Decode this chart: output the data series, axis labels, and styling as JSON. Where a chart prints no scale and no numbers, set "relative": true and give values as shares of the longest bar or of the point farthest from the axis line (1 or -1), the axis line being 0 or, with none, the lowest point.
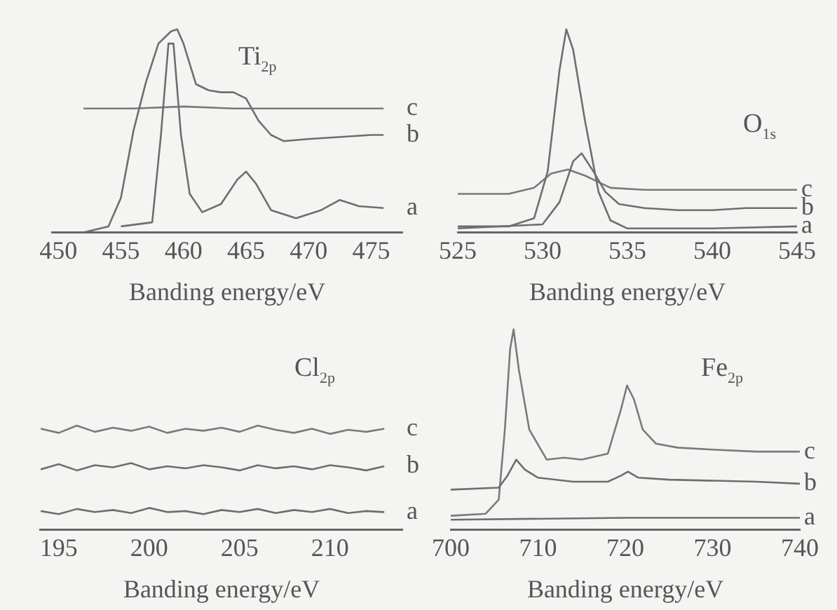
{
  "chart_data": [
    {
      "type": "line",
      "title": "Ti$_{2p}$",
      "xlabel": "Banding energy/eV",
      "relative": true,
      "xlim": [
        449.5,
        477.5
      ],
      "xticks": [
        450,
        455,
        460,
        465,
        470,
        475
      ],
      "grid": false,
      "legend": false,
      "marker": "none",
      "series": [
        {
          "name": "a",
          "color": "#6e6e6e",
          "x": [
            455,
            457.5,
            458.2,
            458.8,
            459.2,
            459.8,
            460.5,
            461.5,
            463,
            464.3,
            465,
            465.8,
            467,
            469,
            471,
            472.5,
            474,
            476
          ],
          "values": [
            0.03,
            0.05,
            0.48,
            0.93,
            0.93,
            0.48,
            0.19,
            0.1,
            0.14,
            0.26,
            0.3,
            0.24,
            0.11,
            0.07,
            0.11,
            0.16,
            0.13,
            0.12
          ]
        },
        {
          "name": "b",
          "color": "#6e6e6e",
          "x": [
            452,
            454,
            455,
            456,
            457,
            458,
            459,
            459.5,
            460,
            461,
            462,
            463,
            464,
            465,
            466,
            467,
            468,
            470,
            475,
            476
          ],
          "values": [
            0,
            0.03,
            0.17,
            0.5,
            0.74,
            0.93,
            0.99,
            1,
            0.93,
            0.73,
            0.7,
            0.69,
            0.69,
            0.66,
            0.55,
            0.48,
            0.45,
            0.46,
            0.48,
            0.48
          ]
        },
        {
          "name": "c",
          "color": "#7a7a7a",
          "x": [
            452,
            456,
            460,
            464,
            468,
            472,
            476
          ],
          "values": [
            0.61,
            0.61,
            0.62,
            0.61,
            0.61,
            0.61,
            0.61
          ]
        }
      ]
    },
    {
      "type": "line",
      "title": "O$_{1s}$",
      "xlabel": "Banding energy/eV",
      "relative": true,
      "xlim": [
        525,
        545
      ],
      "xticks": [
        525,
        530,
        535,
        540,
        545
      ],
      "grid": false,
      "legend": false,
      "marker": "none",
      "series": [
        {
          "name": "a",
          "color": "#6e6e6e",
          "x": [
            525,
            528,
            529.5,
            530.3,
            531,
            531.4,
            531.8,
            532.5,
            533.3,
            534,
            535,
            540,
            545
          ],
          "values": [
            0.03,
            0.03,
            0.07,
            0.3,
            0.8,
            1,
            0.9,
            0.55,
            0.2,
            0.06,
            0.02,
            0.02,
            0.03
          ]
        },
        {
          "name": "b",
          "color": "#6e6e6e",
          "x": [
            525,
            530,
            531,
            531.8,
            532.3,
            533,
            533.7,
            534.5,
            536,
            538,
            540,
            542,
            545
          ],
          "values": [
            0.02,
            0.04,
            0.15,
            0.35,
            0.39,
            0.3,
            0.2,
            0.14,
            0.12,
            0.11,
            0.11,
            0.12,
            0.12
          ]
        },
        {
          "name": "c",
          "color": "#7a7a7a",
          "x": [
            525,
            528,
            529.5,
            530.5,
            531.5,
            532.5,
            534,
            536,
            545
          ],
          "values": [
            0.19,
            0.19,
            0.22,
            0.29,
            0.31,
            0.28,
            0.22,
            0.21,
            0.21
          ]
        }
      ]
    },
    {
      "type": "line",
      "title": "Cl$_{2p}$",
      "xlabel": "Banding energy/eV",
      "relative": true,
      "xlim": [
        194,
        214
      ],
      "xticks": [
        195,
        200,
        205,
        210
      ],
      "grid": false,
      "legend": false,
      "marker": "none",
      "series": [
        {
          "name": "a",
          "color": "#6e6e6e",
          "x": [
            194,
            195,
            196,
            197,
            198,
            199,
            200,
            201,
            202,
            203,
            204,
            205,
            206,
            207,
            208,
            209,
            210,
            211,
            212,
            213
          ],
          "values": [
            0.18,
            0.15,
            0.2,
            0.17,
            0.19,
            0.16,
            0.21,
            0.17,
            0.18,
            0.15,
            0.19,
            0.17,
            0.2,
            0.16,
            0.19,
            0.17,
            0.2,
            0.16,
            0.18,
            0.17
          ]
        },
        {
          "name": "b",
          "color": "#6e6e6e",
          "x": [
            194,
            195,
            196,
            197,
            198,
            199,
            200,
            201,
            202,
            203,
            204,
            205,
            206,
            207,
            208,
            209,
            210,
            211,
            212,
            213
          ],
          "values": [
            0.58,
            0.63,
            0.57,
            0.62,
            0.6,
            0.64,
            0.58,
            0.61,
            0.59,
            0.62,
            0.6,
            0.57,
            0.62,
            0.59,
            0.61,
            0.58,
            0.62,
            0.6,
            0.57,
            0.61
          ]
        },
        {
          "name": "c",
          "color": "#7a7a7a",
          "x": [
            194,
            195,
            196,
            197,
            198,
            199,
            200,
            201,
            202,
            203,
            204,
            205,
            206,
            207,
            208,
            209,
            210,
            211,
            212,
            213
          ],
          "values": [
            0.97,
            0.93,
            1,
            0.94,
            0.98,
            0.95,
            0.99,
            0.93,
            0.97,
            0.95,
            0.98,
            0.94,
            1,
            0.96,
            0.93,
            0.97,
            0.92,
            0.96,
            0.94,
            0.97
          ]
        }
      ]
    },
    {
      "type": "line",
      "title": "Fe$_{2p}$",
      "xlabel": "Banding energy/eV",
      "relative": true,
      "xlim": [
        700,
        740
      ],
      "xticks": [
        700,
        710,
        720,
        730,
        740
      ],
      "grid": false,
      "legend": false,
      "marker": "none",
      "series": [
        {
          "name": "a",
          "color": "#6e6e6e",
          "x": [
            700,
            720,
            740
          ],
          "values": [
            0.05,
            0.06,
            0.06
          ]
        },
        {
          "name": "b",
          "color": "#6e6e6e",
          "x": [
            700,
            705.5,
            706.5,
            707.5,
            708.5,
            710,
            714,
            718,
            719.5,
            720.3,
            721.5,
            725,
            735,
            740
          ],
          "values": [
            0.2,
            0.21,
            0.27,
            0.35,
            0.3,
            0.26,
            0.24,
            0.24,
            0.27,
            0.29,
            0.26,
            0.25,
            0.24,
            0.23
          ]
        },
        {
          "name": "c",
          "color": "#7a7a7a",
          "x": [
            700,
            704,
            705.5,
            706.2,
            706.8,
            707.2,
            707.8,
            709,
            711,
            713,
            715,
            718,
            719.5,
            720.2,
            721,
            722,
            723.5,
            726,
            730,
            735,
            740
          ],
          "values": [
            0.07,
            0.08,
            0.15,
            0.5,
            0.9,
            1,
            0.8,
            0.5,
            0.35,
            0.36,
            0.35,
            0.38,
            0.6,
            0.72,
            0.65,
            0.5,
            0.43,
            0.41,
            0.4,
            0.39,
            0.39
          ]
        }
      ]
    }
  ]
}
